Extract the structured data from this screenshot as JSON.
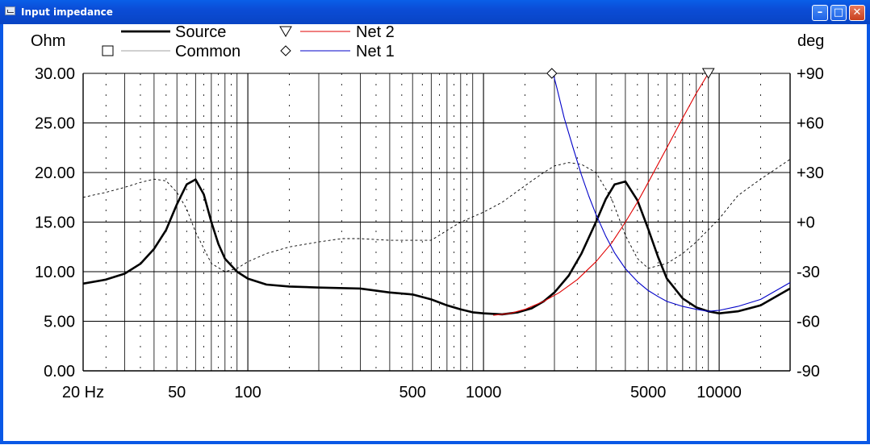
{
  "window": {
    "title": "Input impedance",
    "buttons": {
      "minimize": "minimize-icon",
      "maximize": "maximize-icon",
      "close": "close-icon"
    }
  },
  "chart_data": {
    "type": "line",
    "title": "",
    "xlabel": "",
    "x_scale": "log",
    "xlim": [
      20,
      20000
    ],
    "x_tick_labels": [
      {
        "value": 20,
        "label": "20 Hz"
      },
      {
        "value": 50,
        "label": "50"
      },
      {
        "value": 100,
        "label": "100"
      },
      {
        "value": 500,
        "label": "500"
      },
      {
        "value": 1000,
        "label": "1000"
      },
      {
        "value": 5000,
        "label": "5000"
      },
      {
        "value": 10000,
        "label": "10000"
      }
    ],
    "ylabel_left": "Ohm",
    "ylim_left": [
      0,
      30
    ],
    "y_ticks_left": [
      "0.00",
      "5.00",
      "10.00",
      "15.00",
      "20.00",
      "25.00",
      "30.00"
    ],
    "ylabel_right": "deg",
    "ylim_right": [
      -90,
      90
    ],
    "y_ticks_right": [
      "-90",
      "-60",
      "-30",
      "+0",
      "+30",
      "+60",
      "+90"
    ],
    "grid": true,
    "legend": {
      "placement": "top",
      "entries": [
        {
          "name": "Source",
          "marker": "",
          "color": "#000000",
          "style": "thick-solid"
        },
        {
          "name": "Common",
          "marker": "square",
          "color": "#808080",
          "style": "thin-solid"
        },
        {
          "name": "Net 2",
          "marker": "triangle-down",
          "color": "#e00000",
          "style": "solid"
        },
        {
          "name": "Net 1",
          "marker": "diamond",
          "color": "#0000c8",
          "style": "solid"
        }
      ]
    },
    "series": [
      {
        "name": "Source",
        "axis": "left",
        "color": "#000000",
        "width": 2.6,
        "dash": "",
        "x": [
          20,
          25,
          30,
          35,
          40,
          45,
          50,
          55,
          60,
          65,
          70,
          75,
          80,
          90,
          100,
          120,
          150,
          200,
          300,
          400,
          500,
          600,
          700,
          800,
          900,
          1000,
          1200,
          1400,
          1600,
          1800,
          2000,
          2300,
          2600,
          3000,
          3300,
          3600,
          4000,
          4500,
          5000,
          5500,
          6000,
          7000,
          8000,
          9000,
          10000,
          12000,
          15000,
          20000
        ],
        "y": [
          8.8,
          9.2,
          9.8,
          10.8,
          12.3,
          14.2,
          16.8,
          18.8,
          19.3,
          17.8,
          15.0,
          12.8,
          11.3,
          10.0,
          9.3,
          8.7,
          8.5,
          8.4,
          8.3,
          7.9,
          7.7,
          7.2,
          6.6,
          6.2,
          5.9,
          5.8,
          5.7,
          5.9,
          6.3,
          7.0,
          7.9,
          9.6,
          11.8,
          15.0,
          17.3,
          18.8,
          19.1,
          17.2,
          14.3,
          11.5,
          9.3,
          7.3,
          6.4,
          6.0,
          5.8,
          6.0,
          6.6,
          8.3
        ]
      },
      {
        "name": "Common",
        "axis": "right",
        "color": "#000000",
        "width": 0.9,
        "dash": "3,3",
        "x": [
          20,
          25,
          30,
          35,
          40,
          45,
          50,
          55,
          60,
          70,
          80,
          90,
          100,
          120,
          150,
          200,
          250,
          300,
          400,
          500,
          600,
          700,
          800,
          1000,
          1200,
          1500,
          1800,
          2000,
          2300,
          2600,
          3000,
          3500,
          4000,
          4500,
          5000,
          6000,
          7000,
          8000,
          10000,
          12000,
          15000,
          20000
        ],
        "y": [
          15,
          18,
          21,
          24,
          26,
          25,
          18,
          8,
          -6,
          -25,
          -30,
          -28,
          -24,
          -19,
          -15,
          -12,
          -10,
          -10,
          -11,
          -11,
          -11,
          -5,
          0,
          6,
          12,
          22,
          30,
          34,
          36,
          35,
          30,
          14,
          -8,
          -22,
          -28,
          -25,
          -19,
          -12,
          2,
          16,
          26,
          38
        ]
      },
      {
        "name": "Net 2",
        "axis": "left",
        "color": "#e00000",
        "width": 1.1,
        "dash": "",
        "x": [
          1100,
          1300,
          1500,
          1800,
          2100,
          2500,
          3000,
          3500,
          4000,
          4500,
          5000,
          6000,
          7000,
          8000,
          9000
        ],
        "y": [
          5.6,
          5.8,
          6.2,
          7.0,
          7.9,
          9.2,
          11.0,
          12.9,
          15.0,
          17.0,
          19.0,
          22.5,
          25.5,
          28.0,
          30.0
        ]
      },
      {
        "name": "Net 1",
        "axis": "left",
        "color": "#0000c8",
        "width": 1.1,
        "dash": "",
        "x": [
          1950,
          2050,
          2200,
          2400,
          2600,
          2800,
          3000,
          3300,
          3600,
          4000,
          4500,
          5000,
          5500,
          6000,
          7000,
          8000,
          9000,
          10000,
          12000,
          15000,
          20000
        ],
        "y": [
          30.5,
          28.5,
          25.5,
          22.5,
          19.8,
          17.6,
          15.8,
          13.6,
          11.9,
          10.3,
          9.0,
          8.1,
          7.5,
          7.0,
          6.5,
          6.2,
          6.0,
          6.1,
          6.5,
          7.2,
          8.9
        ]
      }
    ],
    "markers": [
      {
        "series": "Net 1",
        "shape": "diamond",
        "x": 1950,
        "y": 30.0
      },
      {
        "series": "Net 2",
        "shape": "triangle-down",
        "x": 9000,
        "y": 30.0
      }
    ]
  }
}
